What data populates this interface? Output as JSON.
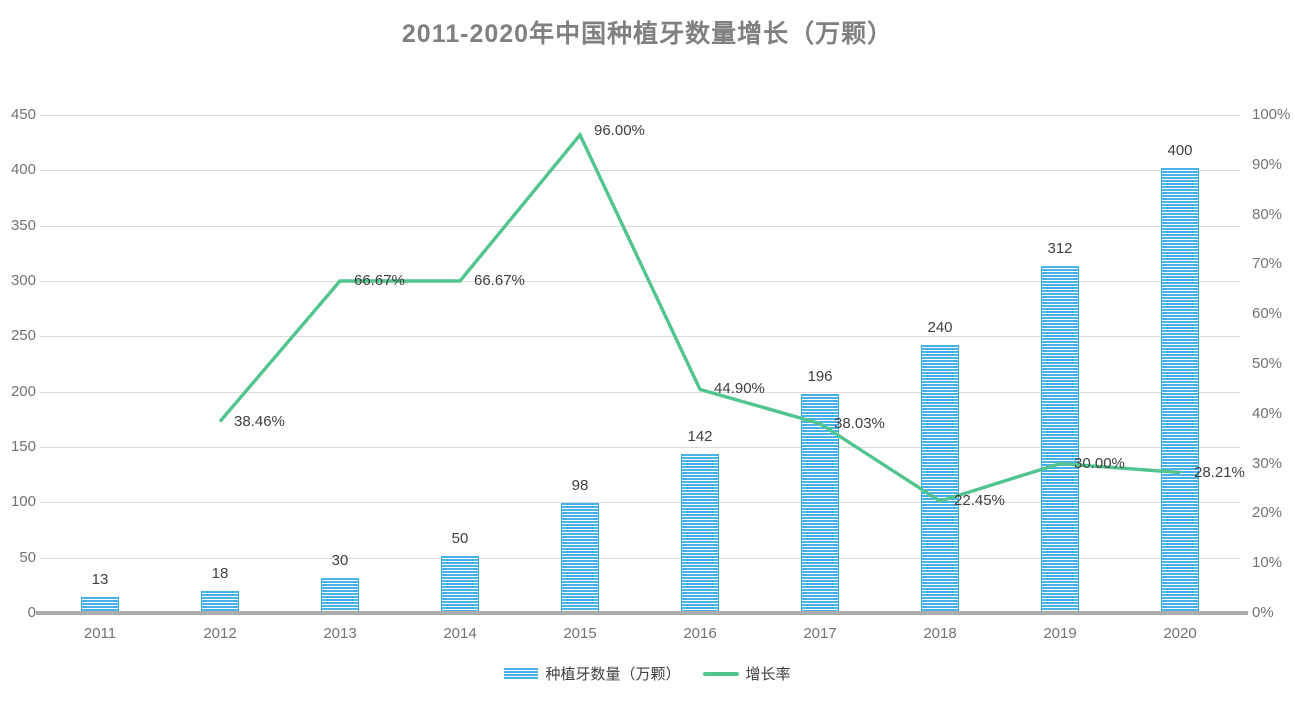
{
  "title": "2011-2020年中国种植牙数量增长（万颗）",
  "chart_data": {
    "type": "bar",
    "subtype": "bar+line combo, line on secondary percent axis",
    "title": "2011-2020年中国种植牙数量增长（万颗）",
    "categories": [
      "2011",
      "2012",
      "2013",
      "2014",
      "2015",
      "2016",
      "2017",
      "2018",
      "2019",
      "2020"
    ],
    "series": [
      {
        "name": "种植牙数量（万颗）",
        "type": "bar",
        "axis": "left",
        "values": [
          13,
          18,
          30,
          50,
          98,
          142,
          196,
          240,
          312,
          400
        ],
        "value_labels": [
          "13",
          "18",
          "30",
          "50",
          "98",
          "142",
          "196",
          "240",
          "312",
          "400"
        ],
        "color": "#4ab1e8",
        "stripe_color": "#ffffff"
      },
      {
        "name": "增长率",
        "type": "line",
        "axis": "right",
        "values": [
          null,
          38.46,
          66.67,
          66.67,
          96.0,
          44.9,
          38.03,
          22.45,
          30.0,
          28.21
        ],
        "value_labels": [
          "",
          "38.46%",
          "66.67%",
          "66.67%",
          "96.00%",
          "44.90%",
          "38.03%",
          "22.45%",
          "30.00%",
          "28.21%"
        ],
        "color": "#52c48e"
      }
    ],
    "left_axis": {
      "min": 0,
      "max": 450,
      "step": 50,
      "ticks": [
        "0",
        "50",
        "100",
        "150",
        "200",
        "250",
        "300",
        "350",
        "400",
        "450"
      ]
    },
    "right_axis": {
      "min": 0,
      "max": 100,
      "step": 10,
      "ticks": [
        "0%",
        "10%",
        "20%",
        "30%",
        "40%",
        "50%",
        "60%",
        "70%",
        "80%",
        "90%",
        "100%"
      ]
    },
    "grid": true,
    "legend_position": "bottom",
    "xlabel": "",
    "ylabel": ""
  },
  "colors": {
    "title_text": "#808080",
    "axis_text": "#737373",
    "data_label_text": "#404040",
    "gridline": "#dcdcdc",
    "axis_line": "#acacac",
    "bar_fill": "#4ab1e8",
    "bar_stripe": "#ffffff",
    "line": "#52c48e",
    "background": "#ffffff"
  }
}
